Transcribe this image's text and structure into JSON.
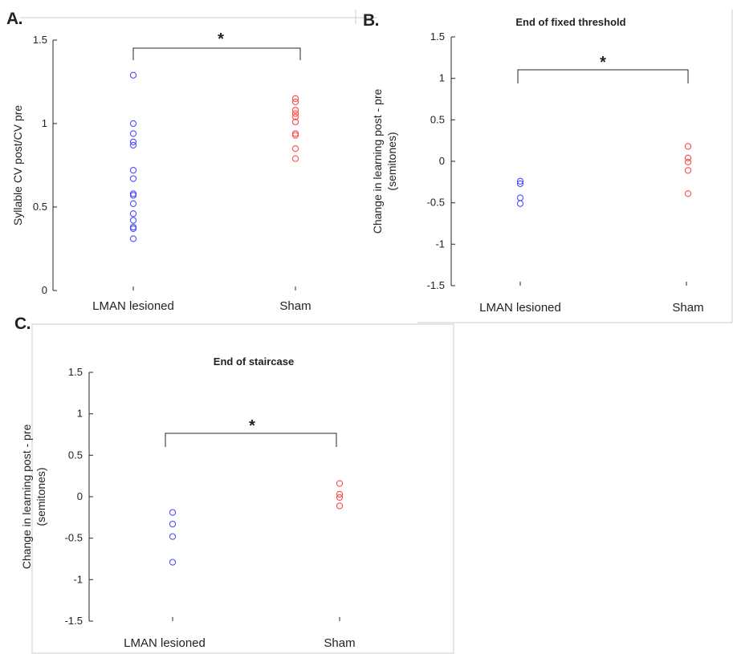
{
  "colors": {
    "lesioned": "#4b4bff",
    "sham": "#ff4b4b",
    "axis": "#262626",
    "frame": "#cccccc"
  },
  "panels": {
    "A": {
      "letter": "A.",
      "title": "",
      "ylabel": "Syllable CV post/CV pre",
      "ylabel2": "",
      "yticks": [
        "0",
        "0.5",
        "1",
        "1.5"
      ],
      "categories": [
        "LMAN lesioned",
        "Sham"
      ],
      "significance": "*"
    },
    "B": {
      "letter": "B.",
      "title": "End of fixed threshold",
      "ylabel": "Change in learning post - pre",
      "ylabel2": "(semitones)",
      "yticks": [
        "-1.5",
        "-1",
        "-0.5",
        "0",
        "0.5",
        "1",
        "1.5"
      ],
      "categories": [
        "LMAN lesioned",
        "Sham"
      ],
      "significance": "*"
    },
    "C": {
      "letter": "C.",
      "title": "End of staircase",
      "ylabel": "Change in learning post - pre",
      "ylabel2": "(semitones)",
      "yticks": [
        "-1.5",
        "-1",
        "-0.5",
        "0",
        "0.5",
        "1",
        "1.5"
      ],
      "categories": [
        "LMAN lesioned",
        "Sham"
      ],
      "significance": "*"
    }
  },
  "chart_data": [
    {
      "panel": "A",
      "type": "scatter",
      "title": "",
      "xlabel": "",
      "ylabel": "Syllable CV post/CV pre",
      "categories": [
        "LMAN lesioned",
        "Sham"
      ],
      "ylim": [
        0,
        1.5
      ],
      "grid": false,
      "series": [
        {
          "category": "LMAN lesioned",
          "color": "#4b4bff",
          "values": [
            1.29,
            1.0,
            0.94,
            0.89,
            0.87,
            0.72,
            0.67,
            0.58,
            0.57,
            0.52,
            0.46,
            0.42,
            0.38,
            0.37,
            0.31
          ]
        },
        {
          "category": "Sham",
          "color": "#ff4b4b",
          "values": [
            1.15,
            1.13,
            1.08,
            1.06,
            1.04,
            1.01,
            0.94,
            0.93,
            0.85,
            0.79
          ]
        }
      ],
      "significance": "*"
    },
    {
      "panel": "B",
      "type": "scatter",
      "title": "End of fixed threshold",
      "xlabel": "",
      "ylabel": "Change in learning post - pre (semitones)",
      "categories": [
        "LMAN lesioned",
        "Sham"
      ],
      "ylim": [
        -1.5,
        1.5
      ],
      "grid": false,
      "series": [
        {
          "category": "LMAN lesioned",
          "color": "#4b4bff",
          "values": [
            -0.24,
            -0.27,
            -0.44,
            -0.51
          ]
        },
        {
          "category": "Sham",
          "color": "#ff4b4b",
          "values": [
            0.18,
            0.04,
            -0.01,
            -0.11,
            -0.39
          ]
        }
      ],
      "significance": "*"
    },
    {
      "panel": "C",
      "type": "scatter",
      "title": "End of staircase",
      "xlabel": "",
      "ylabel": "Change in learning post - pre (semitones)",
      "categories": [
        "LMAN lesioned",
        "Sham"
      ],
      "ylim": [
        -1.5,
        1.5
      ],
      "grid": false,
      "series": [
        {
          "category": "LMAN lesioned",
          "color": "#4b4bff",
          "values": [
            -0.19,
            -0.33,
            -0.48,
            -0.79
          ]
        },
        {
          "category": "Sham",
          "color": "#ff4b4b",
          "values": [
            0.16,
            0.03,
            -0.01,
            -0.11
          ]
        }
      ],
      "significance": "*"
    }
  ]
}
